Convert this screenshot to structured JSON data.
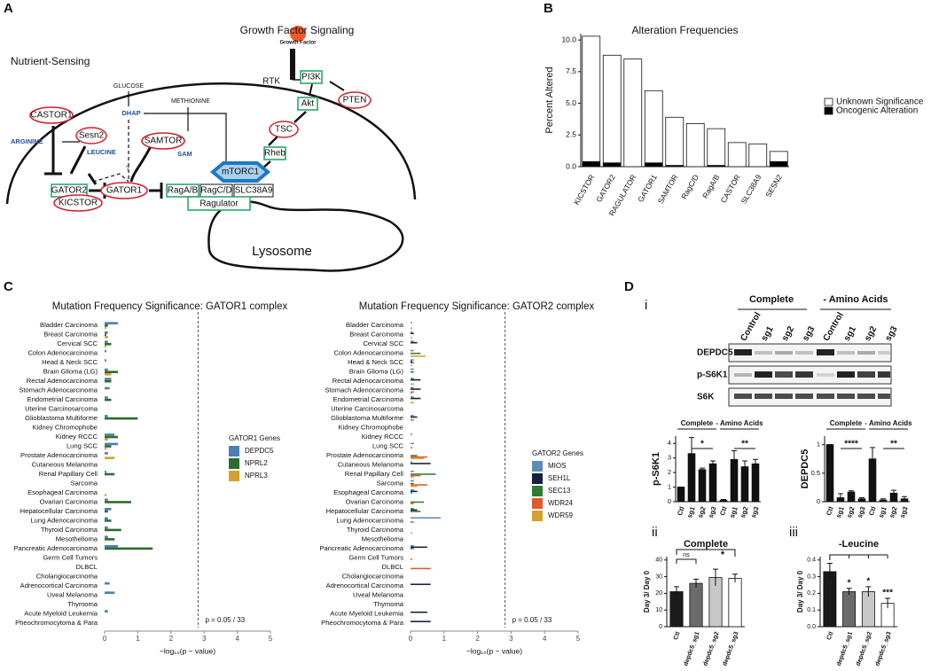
{
  "panel_labels": [
    "A",
    "B",
    "C",
    "D"
  ],
  "subpanel_labels": [
    "i",
    "ii",
    "iii"
  ],
  "diagram": {
    "title": "Growth Factor Signaling",
    "growth_factor": "Growth Factor",
    "rtk": "RTK",
    "nutrient": "Nutrient-Sensing",
    "pi3k": "PI3K",
    "akt": "Akt",
    "pten": "PTEN",
    "tsc": "TSC",
    "rheb": "Rheb",
    "mtorc1": "mTORC1",
    "glucose": "GLUCOSE",
    "dhap": "DHAP",
    "methionine": "METHIONINE",
    "sam": "SAM",
    "castor1": "CASTOR1",
    "arginine": "ARGININE",
    "sesn2": "Sesn2",
    "leucine": "LEUCINE",
    "samtor": "SAMTOR",
    "gator2": "GATOR2",
    "gator1": "GATOR1",
    "kicstor": "KICSTOR",
    "ragab": "RagA/B",
    "ragcd": "RagC/D",
    "slc38a9": "SLC38A9",
    "ragulator": "Ragulator",
    "lysosome": "Lysosome",
    "question": "?"
  },
  "blot": {
    "groups": [
      "Complete",
      "- Amino Acids"
    ],
    "lanes": [
      "Control",
      "sg1",
      "sg2",
      "sg3",
      "Control",
      "sg1",
      "sg2",
      "sg3"
    ],
    "rows": [
      "DEPDC5",
      "p-S6K1",
      "S6K"
    ]
  },
  "chart_data": [
    {
      "type": "bar",
      "stacked": true,
      "title": "Alteration Frequencies",
      "ylabel": "Percent Altered",
      "categories": [
        "KICSTOR",
        "GATOR2",
        "RAGULATOR",
        "GATOR1",
        "SAMTOR",
        "RagC/D",
        "RagA/B",
        "CASTOR",
        "SLC38A9",
        "SESN2"
      ],
      "series": [
        {
          "name": "Oncogenic Alteration",
          "color": "#000000",
          "values": [
            0.4,
            0.3,
            0,
            0.3,
            0.1,
            0,
            0.1,
            0,
            0,
            0.4
          ]
        },
        {
          "name": "Unknown Significance",
          "color": "#ffffff",
          "values": [
            9.9,
            8.5,
            8.5,
            5.7,
            3.8,
            3.4,
            2.9,
            1.9,
            1.8,
            0.8
          ]
        }
      ],
      "ylim": [
        0,
        10.5
      ],
      "yticks": [
        {
          "value": 0,
          "label": "0.0"
        },
        2.5,
        {
          "value": 5,
          "label": "5.0"
        },
        7.5,
        {
          "value": 10,
          "label": "10.0"
        }
      ]
    },
    {
      "type": "hbar",
      "title": "Mutation Frequency Significance: GATOR1 complex",
      "xlabel": "−log₁₀(p − value)",
      "legend_title": "GATOR1 Genes",
      "threshold": 2.82,
      "threshold_label": "p = 0.05 / 33",
      "categories": [
        "Bladder Carcinoma",
        "Breast Carcinoma",
        "Cervical SCC",
        "Colon Adenocarcinoma",
        "Head & Neck SCC",
        "Brain Glioma (LG)",
        "Rectal Adenocarcinoma",
        "Stomach Adenocarcinoma",
        "Endometrial Carcinoma",
        "Uterine Carcinosarcoma",
        "Glioblastoma Multiforme",
        "Kidney Chromophobe",
        "Kidney RCCC",
        "Lung SCC",
        "Prostate Adenocarcinoma",
        "Cutaneous Melanoma",
        "Renal Papillary Cell",
        "Sarcoma",
        "Esophageal Carcinoma",
        "Ovarian Carcinoma",
        "Hepatocellular Carcinoma",
        "Lung Adenocarcinoma",
        "Thyroid Carcinoma",
        "Mesothelioma",
        "Pancreatic Adenocarcinoma",
        "Germ Cell Tumors",
        "DLBCL",
        "Cholangiocarcinoma",
        "Adrenocortical Carcinoma",
        "Uveal Melanoma",
        "Thymoma",
        "Acute Myeloid Leukemia",
        "Pheochromocytoma & Para"
      ],
      "series": [
        {
          "name": "DEPDC5",
          "color": "#4a7fb5",
          "values": [
            0.4,
            0.1,
            0.1,
            0.05,
            0.05,
            0.1,
            0.2,
            0.15,
            0.1,
            0,
            0.1,
            0,
            0.3,
            0.4,
            0.1,
            0,
            0.05,
            0,
            0,
            0.1,
            0.2,
            0.1,
            0.1,
            0.1,
            0.4,
            0,
            0,
            0,
            0.15,
            0.3,
            0,
            0.1,
            0
          ]
        },
        {
          "name": "NPRL2",
          "color": "#2e6b30",
          "values": [
            0.1,
            0.05,
            0.2,
            0,
            0,
            0.4,
            0.2,
            0,
            0.2,
            0,
            1.0,
            0,
            0.4,
            0.2,
            0,
            0,
            0.3,
            0,
            0,
            0.8,
            0.1,
            0.2,
            0.5,
            0.3,
            1.45,
            0,
            0,
            0,
            0,
            0,
            0,
            0,
            0
          ]
        },
        {
          "name": "NPRL3",
          "color": "#d4a030",
          "values": [
            0.05,
            0.1,
            0.05,
            0,
            0,
            0.2,
            0,
            0,
            0,
            0,
            0,
            0,
            0.1,
            0.05,
            0.3,
            0,
            0,
            0,
            0.05,
            0,
            0,
            0,
            0,
            0,
            0,
            0,
            0,
            0,
            0,
            0,
            0,
            0,
            0
          ]
        }
      ],
      "xlim": [
        0,
        5
      ],
      "xticks": [
        0,
        1,
        2,
        3,
        4,
        5
      ]
    },
    {
      "type": "hbar",
      "title": "Mutation Frequency Significance: GATOR2 complex",
      "xlabel": "−log₁₀(p − value)",
      "legend_title": "GATOR2 Genes",
      "threshold": 2.82,
      "threshold_label": "p = 0.05 / 33",
      "categories": [
        "Bladder Carcinoma",
        "Breast Carcinoma",
        "Cervical SCC",
        "Colon Adenocarcinoma",
        "Head & Neck SCC",
        "Brain Glioma (LG)",
        "Rectal Adenocarcinoma",
        "Stomach Adenocarcinoma",
        "Endometrial Carcinoma",
        "Uterine Carcinosarcoma",
        "Glioblastoma Multiforme",
        "Kidney Chromophobe",
        "Kidney RCCC",
        "Lung SCC",
        "Prostate Adenocarcinoma",
        "Cutaneous Melanoma",
        "Renal Papillary Cell",
        "Sarcoma",
        "Esophageal Carcinoma",
        "Ovarian Carcinoma",
        "Hepatocellular Carcinoma",
        "Lung Adenocarcinoma",
        "Thyroid Carcinoma",
        "Mesothelioma",
        "Pancreatic Adenocarcinoma",
        "Germ Cell Tumors",
        "DLBCL",
        "Cholangiocarcinoma",
        "Adrenocortical Carcinoma",
        "Uveal Melanoma",
        "Thymoma",
        "Acute Myeloid Leukemia",
        "Pheochromocytoma & Para"
      ],
      "series": [
        {
          "name": "MIOS",
          "color": "#5b8db8",
          "values": [
            0.05,
            0.05,
            0.1,
            0.1,
            0.1,
            0.1,
            0.1,
            0.1,
            0.1,
            0,
            0.1,
            0,
            0.05,
            0.1,
            0,
            0.05,
            0.1,
            0.1,
            0.1,
            0,
            0.1,
            0.9,
            0,
            0,
            0.1,
            0,
            0,
            0,
            0,
            0,
            0,
            0,
            0
          ]
        },
        {
          "name": "SEH1L",
          "color": "#14213d",
          "values": [
            0,
            0.1,
            0.2,
            0,
            0.05,
            0,
            0.3,
            0.3,
            0.3,
            0,
            0.2,
            0,
            0,
            0,
            0,
            0.6,
            0,
            0,
            0.2,
            0,
            0.2,
            0,
            0,
            0,
            0.5,
            0,
            0,
            0,
            0.6,
            0,
            0,
            0.5,
            0.6
          ]
        },
        {
          "name": "SEC13",
          "color": "#2e7d32",
          "values": [
            0,
            0,
            0,
            0.3,
            0.1,
            0.1,
            0,
            0,
            0,
            0,
            0,
            0,
            0,
            0,
            0.2,
            0,
            0.75,
            0.1,
            0.05,
            0.4,
            0.3,
            0,
            0,
            0,
            0.1,
            0,
            0,
            0,
            0,
            0,
            0,
            0,
            0
          ]
        },
        {
          "name": "WDR24",
          "color": "#e05a2b",
          "values": [
            0,
            0,
            0,
            0,
            0,
            0,
            0,
            0.1,
            0,
            0,
            0.1,
            0,
            0,
            0.05,
            0.5,
            0,
            0.3,
            0.5,
            0,
            0.1,
            0,
            0.1,
            0,
            0,
            0,
            0.05,
            0.6,
            0,
            0,
            0,
            0,
            0,
            0
          ]
        },
        {
          "name": "WDR59",
          "color": "#d4a030",
          "values": [
            0.05,
            0.05,
            0,
            0.45,
            0.05,
            0,
            0.1,
            0.05,
            0.1,
            0,
            0,
            0,
            0,
            0,
            0.4,
            0,
            0.1,
            0.2,
            0,
            0,
            0,
            0,
            0.05,
            0,
            0,
            0,
            0,
            0,
            0,
            0,
            0,
            0,
            0
          ]
        }
      ],
      "xlim": [
        0,
        5
      ],
      "xticks": [
        0,
        1,
        2,
        3,
        4,
        5
      ]
    },
    {
      "type": "bar",
      "ylabel": "p-S6K1",
      "groups": [
        "Complete",
        "- Amino Acids"
      ],
      "annotations": [
        "*",
        "**"
      ],
      "categories": [
        "Ctl",
        "sg1",
        "sg2",
        "sg3",
        "Ctl",
        "sg1",
        "sg2",
        "sg3"
      ],
      "color": "#111111",
      "values": [
        1.0,
        3.3,
        2.2,
        2.6,
        0.1,
        2.9,
        2.4,
        2.6
      ],
      "errors": [
        0,
        1.1,
        0.1,
        0.2,
        0.05,
        0.6,
        0.4,
        0.3
      ],
      "ylim": [
        0,
        4.5
      ],
      "yticks": [
        0,
        1,
        2,
        3,
        4
      ]
    },
    {
      "type": "bar",
      "ylabel": "DEPDC5",
      "groups": [
        "Complete",
        "- Amino Acids"
      ],
      "annotations": [
        "****",
        "**"
      ],
      "categories": [
        "Ctl",
        "sg1",
        "sg2",
        "sg3",
        "Ctl",
        "sg1",
        "sg2",
        "sg3"
      ],
      "color": "#111111",
      "values": [
        1.0,
        0.07,
        0.17,
        0.05,
        0.75,
        0.03,
        0.15,
        0.05
      ],
      "errors": [
        0,
        0.07,
        0.02,
        0.02,
        0.2,
        0.02,
        0.05,
        0.04
      ],
      "ylim": [
        0,
        1.15
      ],
      "yticks": [
        0,
        0.5,
        1
      ]
    },
    {
      "type": "bar",
      "title": "Complete",
      "ylabel": "Day 3/ Day 0",
      "annotations": [
        "ns",
        "*"
      ],
      "categories": [
        "Ctl",
        "depdc5_sg1",
        "depdc5_sg2",
        "depdc5_sg3"
      ],
      "colors": [
        "#1a1a1a",
        "#6b6b6b",
        "#c8c8c8",
        "#ffffff"
      ],
      "values": [
        21,
        26,
        29.5,
        29
      ],
      "errors": [
        3,
        2.5,
        5,
        2.5
      ],
      "ylim": [
        0,
        42
      ],
      "yticks": [
        0,
        10,
        20,
        30,
        40
      ]
    },
    {
      "type": "bar",
      "title": "-Leucine",
      "ylabel": "Day 3/ Day 0",
      "annotations": [
        "*",
        "*",
        "***"
      ],
      "categories": [
        "Ctl",
        "depdc5_sg1",
        "depdc5_sg2",
        "depdc5_sg3"
      ],
      "colors": [
        "#1a1a1a",
        "#6b6b6b",
        "#c8c8c8",
        "#ffffff"
      ],
      "values": [
        0.33,
        0.21,
        0.21,
        0.14
      ],
      "errors": [
        0.05,
        0.02,
        0.03,
        0.03
      ],
      "ylim": [
        0,
        0.42
      ],
      "yticks": [
        {
          "value": 0,
          "label": "0.0"
        },
        0.1,
        0.2,
        0.3,
        0.4
      ]
    }
  ]
}
